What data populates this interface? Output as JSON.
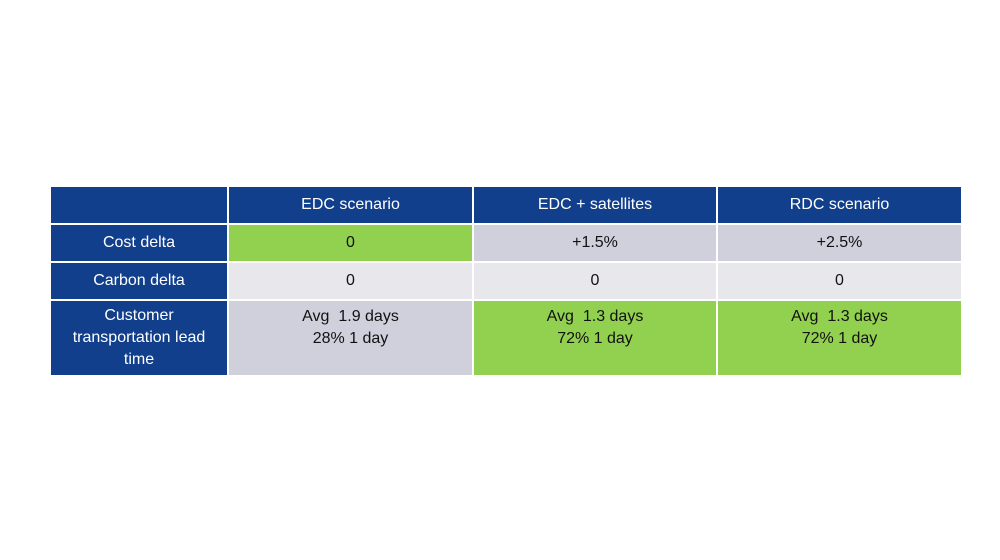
{
  "colors": {
    "header_blue": "#113f8c",
    "green": "#92d050",
    "grey": "#cfd0dc",
    "light_grey": "#e8e8ec"
  },
  "table": {
    "corner": "",
    "columns": [
      "EDC scenario",
      "EDC + satellites",
      "RDC scenario"
    ],
    "rows": [
      {
        "label": "Cost delta",
        "cells": [
          {
            "lines": [
              "0"
            ],
            "fill": "green"
          },
          {
            "lines": [
              "+1.5%"
            ],
            "fill": "grey"
          },
          {
            "lines": [
              "+2.5%"
            ],
            "fill": "grey"
          }
        ]
      },
      {
        "label": "Carbon delta",
        "cells": [
          {
            "lines": [
              "0"
            ],
            "fill": "light_grey"
          },
          {
            "lines": [
              "0"
            ],
            "fill": "light_grey"
          },
          {
            "lines": [
              "0"
            ],
            "fill": "light_grey"
          }
        ]
      },
      {
        "label_lines": [
          "Customer",
          "transportation lead",
          "time"
        ],
        "cells": [
          {
            "lines": [
              "Avg  1.9 days",
              "28% 1 day"
            ],
            "fill": "grey"
          },
          {
            "lines": [
              "Avg  1.3 days",
              "72% 1 day"
            ],
            "fill": "green"
          },
          {
            "lines": [
              "Avg  1.3 days",
              "72% 1 day"
            ],
            "fill": "green"
          }
        ]
      }
    ]
  }
}
